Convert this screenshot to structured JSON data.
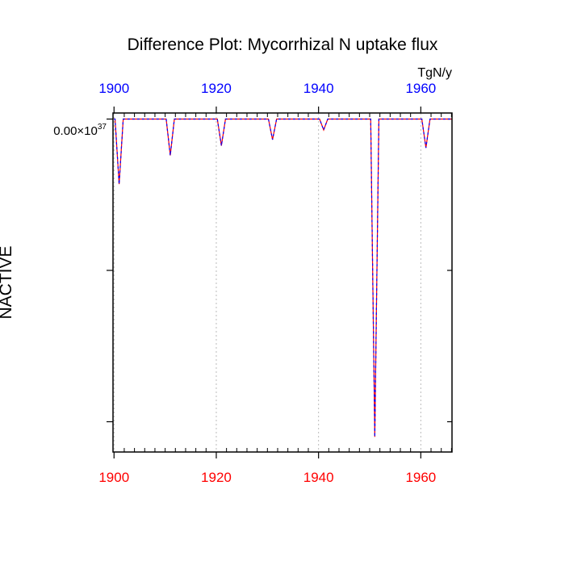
{
  "chart_data": {
    "type": "line",
    "title": "Difference Plot: Mycorrhizal N uptake flux",
    "units": "TgN/y",
    "ylabel": "NACTIVE",
    "y_tick_label": {
      "mantissa": "0.00",
      "times": "×10",
      "exponent": "37"
    },
    "xlim": [
      1899.8,
      1966.1
    ],
    "ylim": [
      -1.1,
      0.02
    ],
    "x_ticks": [
      1900,
      1920,
      1940,
      1960
    ],
    "x_tick_labels_bottom": [
      "1900",
      "1920",
      "1940",
      "1960"
    ],
    "x_tick_labels_top": [
      "1900",
      "1920",
      "1940",
      "1960"
    ],
    "x_minor_step": 2,
    "y_ticks": [
      0,
      -0.5,
      -1.0
    ],
    "colors": {
      "bottom_axis_labels": "#ff0000",
      "top_axis_labels": "#0000ff",
      "series_a": "#ff0000",
      "series_b": "#0000ff",
      "grid": "#bbbbbb"
    },
    "series": [
      {
        "name": "difference",
        "x": [
          1900,
          1900.2,
          1901,
          1901.8,
          1910,
          1910.2,
          1911,
          1911.8,
          1920,
          1920.2,
          1921,
          1921.8,
          1930,
          1930.2,
          1931,
          1931.8,
          1940,
          1940.2,
          1941,
          1941.8,
          1950,
          1950.2,
          1951,
          1951.8,
          1960,
          1960.2,
          1961,
          1961.8,
          1966.1
        ],
        "y": [
          0,
          0,
          -0.215,
          0,
          0,
          0,
          -0.12,
          0,
          0,
          0,
          -0.088,
          0,
          0,
          0,
          -0.068,
          0,
          0,
          0,
          -0.036,
          0,
          0,
          0,
          -1.05,
          0,
          0,
          0,
          -0.095,
          0,
          0
        ]
      }
    ]
  }
}
